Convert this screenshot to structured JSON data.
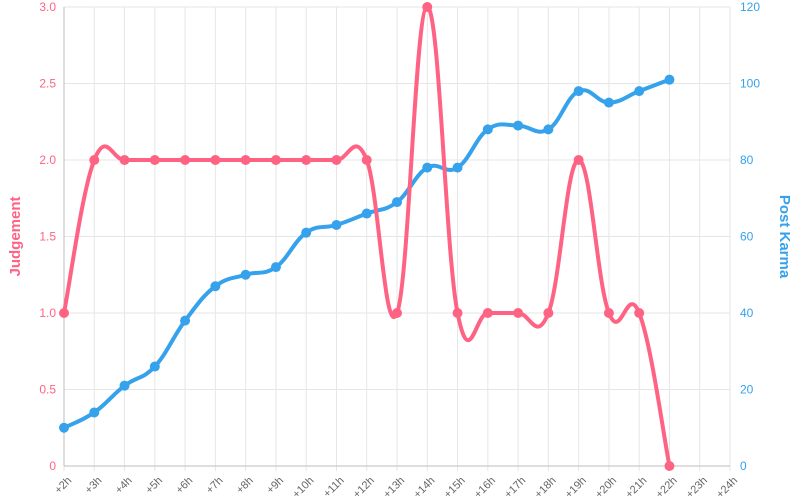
{
  "chart_data": {
    "type": "line",
    "categories": [
      "+2h",
      "+3h",
      "+4h",
      "+5h",
      "+6h",
      "+7h",
      "+8h",
      "+9h",
      "+10h",
      "+11h",
      "+12h",
      "+13h",
      "+14h",
      "+15h",
      "+16h",
      "+17h",
      "+18h",
      "+19h",
      "+20h",
      "+21h",
      "+22h",
      "+23h",
      "+24h"
    ],
    "series": [
      {
        "name": "Judgement",
        "axis": "left",
        "color": "#ff6384",
        "values": [
          1.0,
          2.0,
          2.0,
          2.0,
          2.0,
          2.0,
          2.0,
          2.0,
          2.0,
          2.0,
          2.0,
          1.0,
          3.0,
          1.0,
          1.0,
          1.0,
          1.0,
          2.0,
          1.0,
          1.0,
          0.0,
          null,
          null
        ]
      },
      {
        "name": "Post Karma",
        "axis": "right",
        "color": "#36a2eb",
        "values": [
          10,
          14,
          21,
          26,
          38,
          47,
          50,
          52,
          61,
          63,
          66,
          69,
          78,
          78,
          88,
          89,
          88,
          98,
          95,
          98,
          101,
          null,
          null
        ]
      }
    ],
    "y_left": {
      "label": "Judgement",
      "range": [
        0,
        3
      ],
      "ticks": [
        "0",
        "0.5",
        "1.0",
        "1.5",
        "2.0",
        "2.5",
        "3.0"
      ],
      "color": "#ff6384"
    },
    "y_right": {
      "label": "Post Karma",
      "range": [
        0,
        120
      ],
      "ticks": [
        "0",
        "20",
        "40",
        "60",
        "80",
        "100",
        "120"
      ],
      "color": "#36a2eb"
    },
    "grid": true,
    "legend": "none"
  }
}
